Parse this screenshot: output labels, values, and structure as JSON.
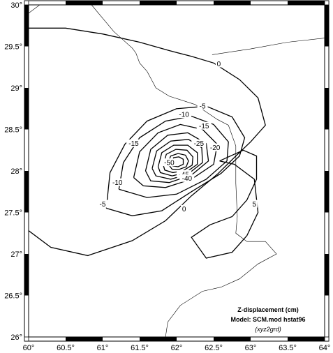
{
  "map": {
    "legend": {
      "line1": "Z-displacement (cm)",
      "line2": "Model: SCM.mod hstat96",
      "line3": "(xyz2grd)"
    },
    "lon_ticks": [
      {
        "value": 60.0,
        "label": "60°"
      },
      {
        "value": 60.5,
        "label": "60.5°"
      },
      {
        "value": 61.0,
        "label": "61°"
      },
      {
        "value": 61.5,
        "label": "61.5°"
      },
      {
        "value": 62.0,
        "label": "62°"
      },
      {
        "value": 62.5,
        "label": "62.5°"
      },
      {
        "value": 63.0,
        "label": "63°"
      },
      {
        "value": 63.5,
        "label": "63.5°"
      },
      {
        "value": 64.0,
        "label": "64°"
      }
    ],
    "lat_ticks": [
      {
        "value": 30.0,
        "label": "30°"
      },
      {
        "value": 29.5,
        "label": "29.5°"
      },
      {
        "value": 29.0,
        "label": "29°"
      },
      {
        "value": 28.5,
        "label": "28.5°"
      },
      {
        "value": 28.0,
        "label": "28°"
      },
      {
        "value": 27.5,
        "label": "27.5°"
      },
      {
        "value": 27.0,
        "label": "27°"
      },
      {
        "value": 26.5,
        "label": "26.5°"
      },
      {
        "value": 26.0,
        "label": "26°"
      }
    ],
    "extent": {
      "lon": [
        60,
        64
      ],
      "lat": [
        26,
        30
      ]
    },
    "contour_labels": [
      {
        "text": "0",
        "lon": 62.57,
        "lat": 29.29
      },
      {
        "text": "-5",
        "lon": 62.35,
        "lat": 28.78
      },
      {
        "text": "-10",
        "lon": 62.1,
        "lat": 28.68
      },
      {
        "text": "-15",
        "lon": 62.37,
        "lat": 28.54
      },
      {
        "text": "-15",
        "lon": 61.42,
        "lat": 28.33
      },
      {
        "text": "-20",
        "lon": 62.52,
        "lat": 28.28
      },
      {
        "text": "-25",
        "lon": 62.3,
        "lat": 28.33
      },
      {
        "text": "-50",
        "lon": 61.9,
        "lat": 28.1
      },
      {
        "text": "-45",
        "lon": 62.1,
        "lat": 27.96
      },
      {
        "text": "-40",
        "lon": 62.14,
        "lat": 27.91
      },
      {
        "text": "-10",
        "lon": 61.2,
        "lat": 27.86
      },
      {
        "text": "-5",
        "lon": 61.0,
        "lat": 27.6
      },
      {
        "text": "0",
        "lon": 62.1,
        "lat": 27.54
      },
      {
        "text": "5",
        "lon": 63.05,
        "lat": 27.6
      }
    ],
    "contours": [
      [
        [
          60.0,
          29.72
        ],
        [
          60.5,
          29.72
        ],
        [
          61.0,
          29.65
        ],
        [
          61.5,
          29.55
        ],
        [
          61.9,
          29.45
        ],
        [
          62.2,
          29.38
        ],
        [
          62.5,
          29.3
        ],
        [
          62.85,
          29.1
        ],
        [
          63.1,
          28.88
        ],
        [
          63.2,
          28.55
        ],
        [
          63.0,
          28.35
        ],
        [
          62.8,
          28.18
        ],
        [
          62.55,
          27.96
        ],
        [
          62.2,
          27.7
        ],
        [
          61.85,
          27.4
        ],
        [
          61.4,
          27.16
        ],
        [
          60.8,
          26.98
        ],
        [
          60.3,
          27.08
        ],
        [
          60.0,
          27.28
        ]
      ],
      [
        [
          61.05,
          27.55
        ],
        [
          61.1,
          27.98
        ],
        [
          61.3,
          28.32
        ],
        [
          61.6,
          28.6
        ],
        [
          62.0,
          28.75
        ],
        [
          62.4,
          28.78
        ],
        [
          62.75,
          28.65
        ],
        [
          62.92,
          28.4
        ],
        [
          62.85,
          28.18
        ],
        [
          62.6,
          27.97
        ],
        [
          62.2,
          27.75
        ],
        [
          61.8,
          27.52
        ],
        [
          61.4,
          27.46
        ],
        [
          61.05,
          27.55
        ]
      ],
      [
        [
          61.22,
          27.78
        ],
        [
          61.28,
          28.1
        ],
        [
          61.5,
          28.4
        ],
        [
          61.85,
          28.6
        ],
        [
          62.2,
          28.66
        ],
        [
          62.5,
          28.56
        ],
        [
          62.7,
          28.35
        ],
        [
          62.68,
          28.12
        ],
        [
          62.4,
          27.9
        ],
        [
          62.0,
          27.72
        ],
        [
          61.6,
          27.68
        ],
        [
          61.22,
          27.78
        ]
      ],
      [
        [
          61.42,
          27.92
        ],
        [
          61.5,
          28.23
        ],
        [
          61.75,
          28.46
        ],
        [
          62.05,
          28.56
        ],
        [
          62.35,
          28.5
        ],
        [
          62.55,
          28.32
        ],
        [
          62.5,
          28.08
        ],
        [
          62.2,
          27.9
        ],
        [
          61.85,
          27.8
        ],
        [
          61.55,
          27.82
        ],
        [
          61.42,
          27.92
        ]
      ],
      [
        [
          61.58,
          28.0
        ],
        [
          61.65,
          28.26
        ],
        [
          61.88,
          28.43
        ],
        [
          62.15,
          28.46
        ],
        [
          62.4,
          28.33
        ],
        [
          62.43,
          28.12
        ],
        [
          62.2,
          27.95
        ],
        [
          61.9,
          27.86
        ],
        [
          61.65,
          27.88
        ],
        [
          61.58,
          28.0
        ]
      ],
      [
        [
          61.67,
          28.03
        ],
        [
          61.73,
          28.24
        ],
        [
          61.92,
          28.36
        ],
        [
          62.16,
          28.38
        ],
        [
          62.34,
          28.28
        ],
        [
          62.35,
          28.1
        ],
        [
          62.15,
          27.96
        ],
        [
          61.92,
          27.9
        ],
        [
          61.72,
          27.94
        ],
        [
          61.67,
          28.03
        ]
      ],
      [
        [
          61.75,
          28.05
        ],
        [
          61.8,
          28.22
        ],
        [
          61.96,
          28.31
        ],
        [
          62.15,
          28.31
        ],
        [
          62.28,
          28.22
        ],
        [
          62.28,
          28.08
        ],
        [
          62.12,
          27.98
        ],
        [
          61.94,
          27.94
        ],
        [
          61.78,
          27.98
        ],
        [
          61.75,
          28.05
        ]
      ],
      [
        [
          61.82,
          28.07
        ],
        [
          61.86,
          28.2
        ],
        [
          61.99,
          28.26
        ],
        [
          62.14,
          28.25
        ],
        [
          62.22,
          28.17
        ],
        [
          62.21,
          28.07
        ],
        [
          62.08,
          28.0
        ],
        [
          61.95,
          27.98
        ],
        [
          61.84,
          28.01
        ],
        [
          61.82,
          28.07
        ]
      ],
      [
        [
          61.88,
          28.09
        ],
        [
          61.92,
          28.18
        ],
        [
          62.02,
          28.21
        ],
        [
          62.12,
          28.19
        ],
        [
          62.16,
          28.12
        ],
        [
          62.13,
          28.05
        ],
        [
          62.04,
          28.02
        ],
        [
          61.94,
          28.02
        ],
        [
          61.88,
          28.09
        ]
      ],
      [
        [
          61.93,
          28.1
        ],
        [
          61.96,
          28.16
        ],
        [
          62.03,
          28.17
        ],
        [
          62.09,
          28.14
        ],
        [
          62.09,
          28.08
        ],
        [
          62.02,
          28.05
        ],
        [
          61.95,
          28.06
        ],
        [
          61.93,
          28.1
        ]
      ],
      [
        [
          62.58,
          28.12
        ],
        [
          62.9,
          28.25
        ],
        [
          63.08,
          28.18
        ],
        [
          63.08,
          27.9
        ],
        [
          62.95,
          27.65
        ],
        [
          62.75,
          27.45
        ],
        [
          62.45,
          27.35
        ],
        [
          62.2,
          27.2
        ],
        [
          62.4,
          26.95
        ],
        [
          62.75,
          27.02
        ],
        [
          62.95,
          27.22
        ],
        [
          63.1,
          27.5
        ],
        [
          63.05,
          27.9
        ],
        [
          62.78,
          28.08
        ],
        [
          62.58,
          28.12
        ]
      ]
    ],
    "borders": [
      [
        [
          60.0,
          29.9
        ],
        [
          60.15,
          30.0
        ]
      ],
      [
        [
          60.85,
          30.0
        ],
        [
          61.15,
          29.68
        ],
        [
          61.4,
          29.48
        ],
        [
          61.45,
          29.42
        ],
        [
          61.5,
          29.3
        ],
        [
          61.6,
          29.2
        ],
        [
          61.66,
          29.1
        ],
        [
          61.72,
          29.0
        ],
        [
          61.9,
          28.9
        ],
        [
          62.25,
          28.8
        ],
        [
          62.55,
          28.62
        ],
        [
          62.7,
          28.55
        ],
        [
          62.8,
          28.3
        ],
        [
          62.8,
          27.85
        ],
        [
          62.82,
          27.45
        ],
        [
          62.8,
          27.25
        ],
        [
          62.95,
          27.15
        ],
        [
          63.2,
          27.15
        ],
        [
          63.35,
          27.0
        ],
        [
          63.1,
          26.88
        ],
        [
          62.85,
          26.7
        ],
        [
          62.6,
          26.6
        ],
        [
          62.35,
          26.55
        ],
        [
          62.05,
          26.38
        ],
        [
          61.88,
          26.18
        ],
        [
          61.85,
          26.0
        ]
      ],
      [
        [
          62.48,
          29.4
        ],
        [
          63.0,
          29.47
        ],
        [
          63.5,
          29.55
        ],
        [
          64.0,
          29.6
        ]
      ]
    ]
  }
}
